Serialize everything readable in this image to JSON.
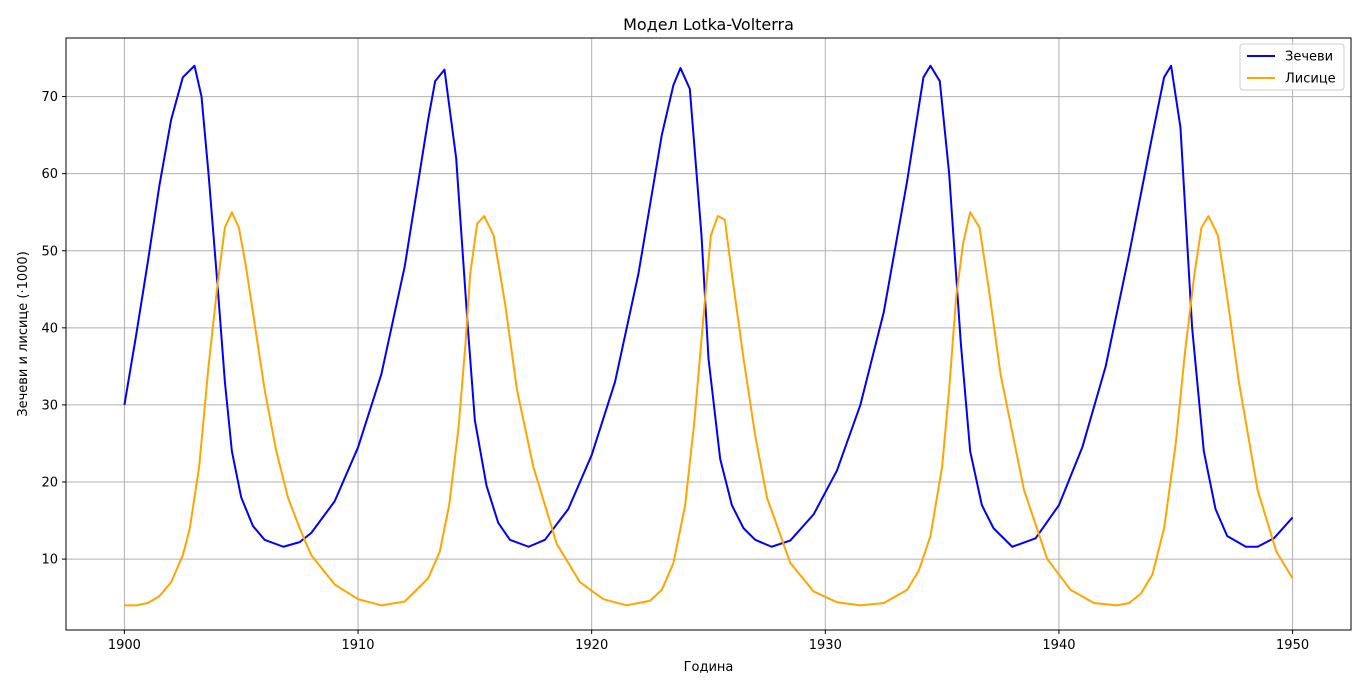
{
  "chart_data": {
    "type": "line",
    "title": "Модел Lotka-Volterra",
    "xlabel": "Година",
    "ylabel": "Зечеви и лисице (·1000)",
    "xlim": [
      1897.5,
      1952.5
    ],
    "ylim": [
      0.8,
      77.6
    ],
    "xticks": [
      1900,
      1910,
      1920,
      1930,
      1940,
      1950
    ],
    "yticks": [
      10,
      20,
      30,
      40,
      50,
      60,
      70
    ],
    "grid": true,
    "legend": "top-right",
    "series": [
      {
        "name": "Зечеви",
        "color": "#0000ff",
        "x": [
          1900,
          1900.5,
          1901,
          1901.5,
          1902,
          1902.5,
          1903,
          1903.3,
          1903.6,
          1904,
          1904.3,
          1904.6,
          1905,
          1905.5,
          1906,
          1906.8,
          1907.5,
          1908,
          1909,
          1910,
          1911,
          1912,
          1913,
          1913.3,
          1913.7,
          1914.2,
          1914.7,
          1915,
          1915.5,
          1916,
          1916.5,
          1917.3,
          1918,
          1919,
          1920,
          1921,
          1922,
          1923,
          1923.5,
          1923.8,
          1924.2,
          1924.7,
          1925,
          1925.5,
          1926,
          1926.5,
          1927,
          1927.7,
          1928.5,
          1929.5,
          1930.5,
          1931.5,
          1932.5,
          1933.5,
          1934.2,
          1934.5,
          1934.9,
          1935.3,
          1935.8,
          1936.2,
          1936.7,
          1937.2,
          1938,
          1939,
          1940,
          1941,
          1942,
          1943,
          1944,
          1944.5,
          1944.8,
          1945.2,
          1945.7,
          1946.2,
          1946.7,
          1947.2,
          1948,
          1948.5,
          1949.2,
          1950
        ],
        "y": [
          30,
          39,
          48.5,
          58.5,
          67,
          72.5,
          74,
          70,
          60,
          45,
          33,
          24,
          18,
          14.3,
          12.5,
          11.6,
          12.2,
          13.4,
          17.5,
          24.5,
          34,
          48,
          67,
          72,
          73.5,
          62,
          40,
          28,
          19.5,
          14.7,
          12.5,
          11.6,
          12.5,
          16.5,
          23.5,
          33,
          47,
          65,
          71.5,
          73.7,
          71,
          52,
          36,
          23,
          17,
          14,
          12.5,
          11.6,
          12.4,
          15.8,
          21.5,
          30,
          42,
          59,
          72.5,
          74,
          72,
          60,
          38,
          24,
          17,
          14,
          11.6,
          12.7,
          17,
          24.5,
          35,
          49.5,
          65,
          72.5,
          74,
          66,
          40,
          24,
          16.5,
          13,
          11.6,
          11.6,
          12.7,
          15.4
        ]
      },
      {
        "name": "Лисице",
        "color": "#ffa500",
        "x": [
          1900,
          1900.5,
          1901,
          1901.5,
          1902,
          1902.5,
          1902.8,
          1903.2,
          1903.6,
          1904,
          1904.3,
          1904.6,
          1904.9,
          1905.2,
          1905.6,
          1906,
          1906.5,
          1907,
          1907.5,
          1908,
          1909,
          1910,
          1911,
          1912,
          1913,
          1913.5,
          1913.9,
          1914.3,
          1914.6,
          1914.8,
          1915.1,
          1915.4,
          1915.8,
          1916.3,
          1916.8,
          1917.5,
          1918.5,
          1919.5,
          1920.5,
          1921.5,
          1922.5,
          1923,
          1923.5,
          1924,
          1924.4,
          1924.8,
          1925.1,
          1925.4,
          1925.7,
          1926,
          1926.5,
          1927,
          1927.5,
          1928.5,
          1929.5,
          1930.5,
          1931.5,
          1932.5,
          1933.5,
          1934,
          1934.5,
          1935,
          1935.3,
          1935.6,
          1935.9,
          1936.2,
          1936.6,
          1937,
          1937.5,
          1938.5,
          1939.5,
          1940.5,
          1941.5,
          1942.5,
          1943,
          1943.5,
          1944,
          1944.5,
          1945,
          1945.4,
          1945.8,
          1946.1,
          1946.4,
          1946.8,
          1947.2,
          1947.7,
          1948.5,
          1949.3,
          1950
        ],
        "y": [
          4,
          4,
          4.3,
          5.2,
          7,
          10.5,
          14,
          22,
          35,
          46,
          53,
          55,
          53,
          48,
          40,
          32,
          24,
          18,
          14,
          10.5,
          6.7,
          4.8,
          4,
          4.5,
          7.5,
          11,
          17,
          27,
          38,
          47,
          53.5,
          54.5,
          52,
          43,
          32,
          22,
          12,
          7,
          4.8,
          4,
          4.6,
          6,
          9.5,
          17,
          28,
          42,
          52,
          54.5,
          54,
          47,
          36,
          26,
          18,
          9.5,
          5.8,
          4.4,
          4,
          4.3,
          6,
          8.5,
          13,
          22,
          32,
          44,
          51,
          55,
          53,
          45,
          34,
          19,
          10,
          6,
          4.3,
          4,
          4.3,
          5.5,
          8,
          14,
          25,
          37,
          47,
          53,
          54.5,
          52,
          44,
          33,
          19,
          11,
          7.5
        ]
      }
    ]
  }
}
